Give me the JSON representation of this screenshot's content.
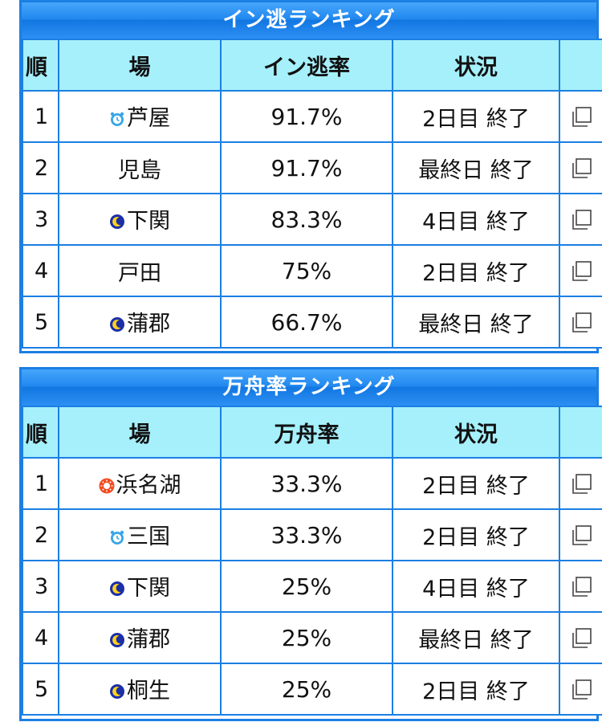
{
  "colors": {
    "accent": "#1b7fe3",
    "header_bg": "#a6f0fc"
  },
  "tables": [
    {
      "title": "イン逃ランキング",
      "headers": [
        "順",
        "場",
        "イン逃率",
        "状況",
        ""
      ],
      "rows": [
        {
          "rank": "1",
          "icon": "morning-clock-icon",
          "place": "芦屋",
          "value": "91.7%",
          "status": "2日目 終了"
        },
        {
          "rank": "2",
          "icon": "",
          "place": "児島",
          "value": "91.7%",
          "status": "最終日 終了"
        },
        {
          "rank": "3",
          "icon": "night-moon-icon",
          "place": "下関",
          "value": "83.3%",
          "status": "4日目 終了"
        },
        {
          "rank": "4",
          "icon": "",
          "place": "戸田",
          "value": "75%",
          "status": "2日目 終了"
        },
        {
          "rank": "5",
          "icon": "night-moon-icon",
          "place": "蒲郡",
          "value": "66.7%",
          "status": "最終日 終了"
        }
      ]
    },
    {
      "title": "万舟率ランキング",
      "headers": [
        "順",
        "場",
        "万舟率",
        "状況",
        ""
      ],
      "rows": [
        {
          "rank": "1",
          "icon": "sun-icon",
          "place": "浜名湖",
          "value": "33.3%",
          "status": "2日目 終了"
        },
        {
          "rank": "2",
          "icon": "morning-clock-icon",
          "place": "三国",
          "value": "33.3%",
          "status": "2日目 終了"
        },
        {
          "rank": "3",
          "icon": "night-moon-icon",
          "place": "下関",
          "value": "25%",
          "status": "4日目 終了"
        },
        {
          "rank": "4",
          "icon": "night-moon-icon",
          "place": "蒲郡",
          "value": "25%",
          "status": "最終日 終了"
        },
        {
          "rank": "5",
          "icon": "night-moon-icon",
          "place": "桐生",
          "value": "25%",
          "status": "2日目 終了"
        }
      ]
    }
  ]
}
